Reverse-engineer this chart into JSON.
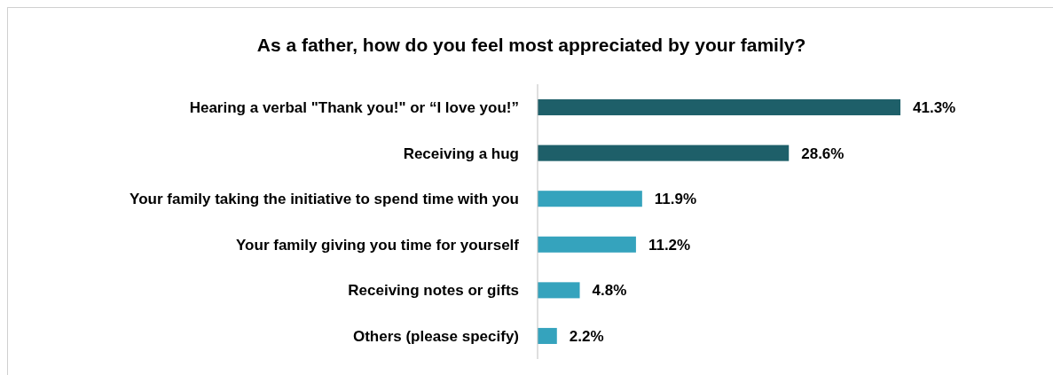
{
  "chart_data": {
    "type": "bar",
    "orientation": "horizontal",
    "title": "As a father, how do you feel most appreciated by your family?",
    "categories": [
      "Hearing a verbal \"Thank you!\" or “I love you!”",
      "Receiving a hug",
      "Your family taking the initiative to spend time with you",
      "Your family giving you time for yourself",
      "Receiving notes or gifts",
      "Others (please specify)"
    ],
    "values": [
      41.3,
      28.6,
      11.9,
      11.2,
      4.8,
      2.2
    ],
    "colors": [
      "#1e5f69",
      "#1e5f69",
      "#35a3bd",
      "#35a3bd",
      "#35a3bd",
      "#35a3bd"
    ],
    "value_labels": [
      "41.3%",
      "28.6%",
      "11.9%",
      "11.2%",
      "4.8%",
      "2.2%"
    ]
  }
}
